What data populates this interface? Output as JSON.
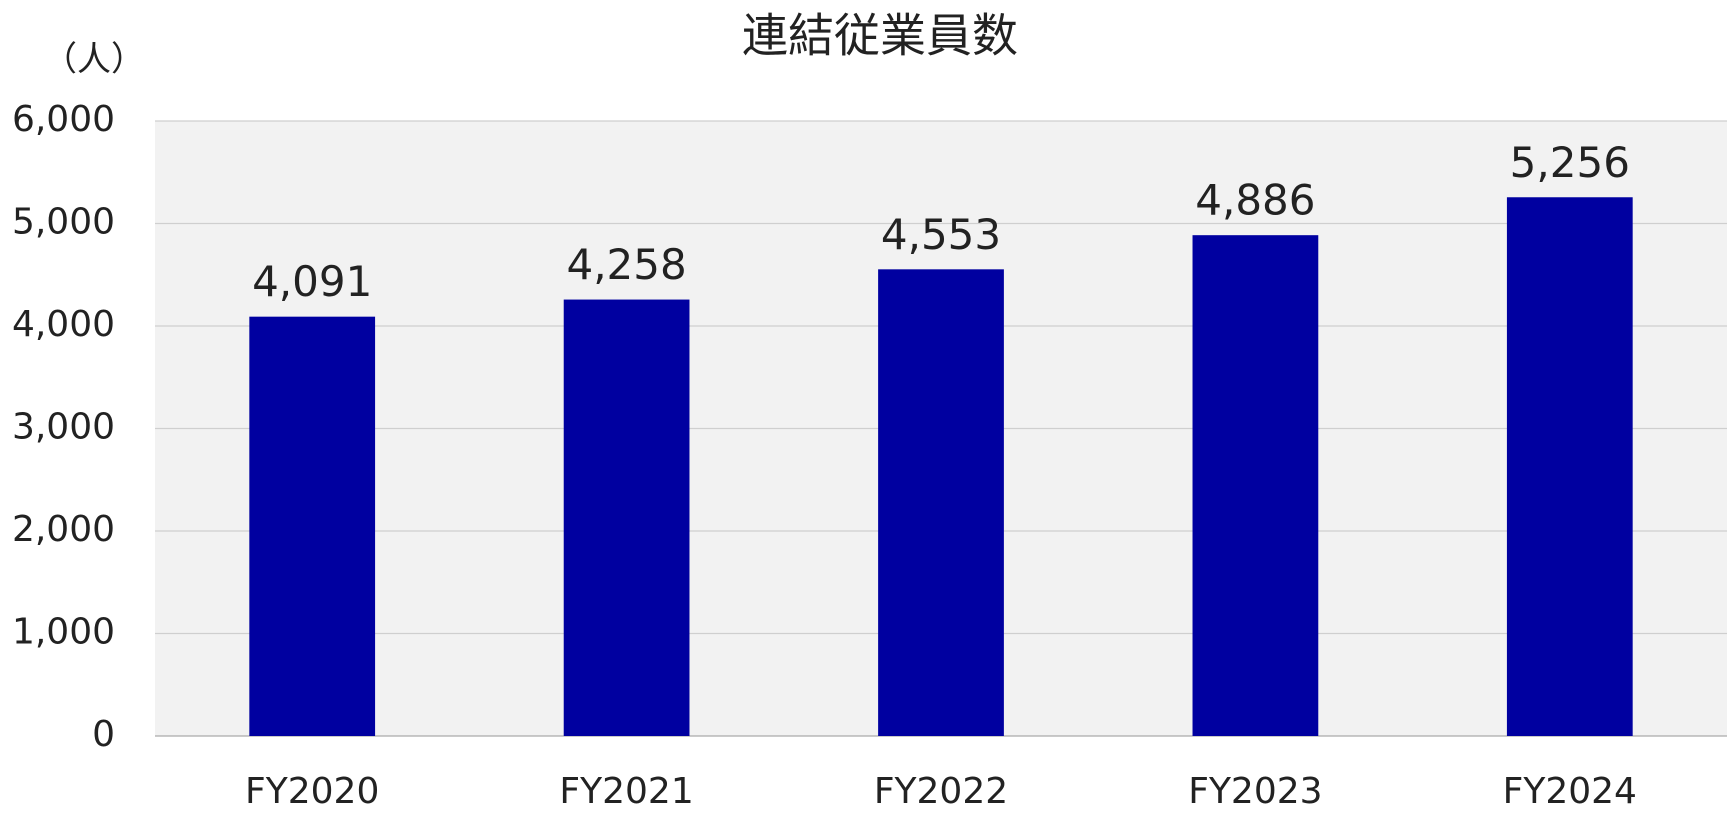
{
  "chart_data": {
    "type": "bar",
    "title": "連結従業員数",
    "y_axis_label": "（人）",
    "categories": [
      "FY2020",
      "FY2021",
      "FY2022",
      "FY2023",
      "FY2024"
    ],
    "values": [
      4091,
      4258,
      4553,
      4886,
      5256
    ],
    "value_labels": [
      "4,091",
      "4,258",
      "4,553",
      "4,886",
      "5,256"
    ],
    "color": "#0000a0",
    "ylim": [
      0,
      6000
    ],
    "yticks": [
      0,
      {
        "value": 1000,
        "label": "1,000"
      },
      {
        "value": 2000,
        "label": "2,000"
      },
      {
        "value": 3000,
        "label": "3,000"
      },
      {
        "value": 4000,
        "label": "4,000"
      },
      {
        "value": 5000,
        "label": "5,000"
      },
      {
        "value": 6000,
        "label": "6,000"
      }
    ],
    "grid": true
  }
}
